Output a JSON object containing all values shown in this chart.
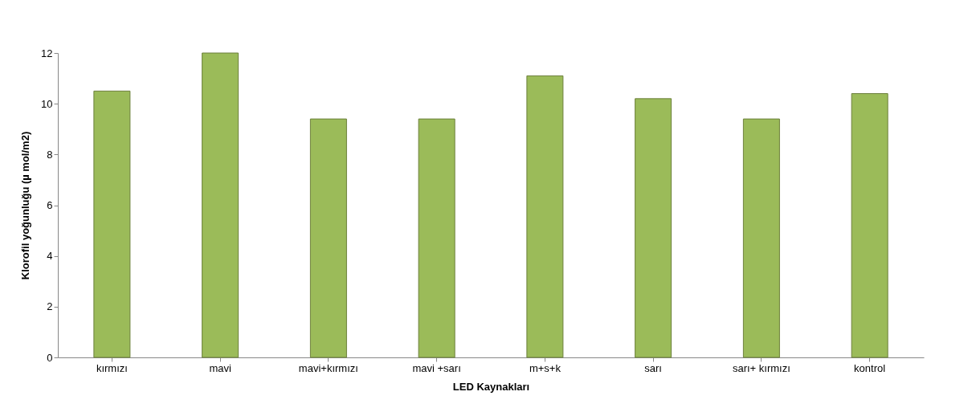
{
  "chart_data": {
    "type": "bar",
    "xlabel": "LED Kaynakları",
    "ylabel": "Klorofil yoğunluğu  (µ mol/m2)",
    "categories": [
      "kırmızı",
      "mavi",
      "mavi+kırmızı",
      "mavi +sarı",
      "m+s+k",
      "sarı",
      "sarı+ kırmızı",
      "kontrol"
    ],
    "values": [
      10.5,
      12.0,
      9.4,
      9.4,
      11.1,
      10.2,
      9.4,
      10.4
    ],
    "color": "#9bbb59",
    "ylim": [
      0,
      12
    ],
    "yticks": [
      0,
      2,
      4,
      6,
      8,
      10,
      12
    ],
    "grid": false
  }
}
